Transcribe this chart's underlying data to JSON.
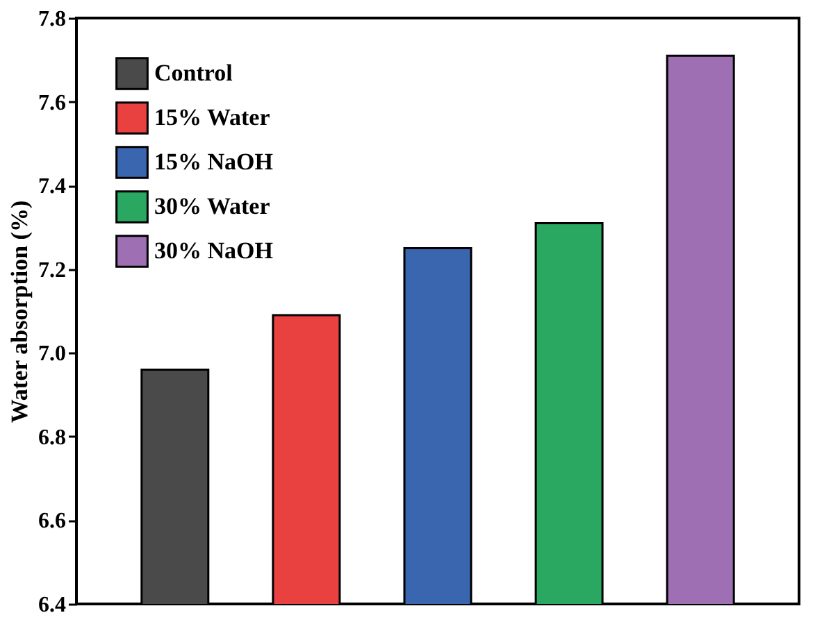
{
  "chart_data": {
    "type": "bar",
    "ylabel": "Water absorption (%)",
    "categories": [
      null,
      null,
      null,
      null,
      null
    ],
    "series": [
      {
        "name": "Control",
        "color": "#4a4a4a",
        "values": [
          6.96,
          null,
          null,
          null,
          null
        ]
      },
      {
        "name": "15% Water",
        "color": "#e8413f",
        "values": [
          null,
          7.09,
          null,
          null,
          null
        ]
      },
      {
        "name": "15% NaOH",
        "color": "#3a66b0",
        "values": [
          null,
          null,
          7.25,
          null,
          null
        ]
      },
      {
        "name": "30% Water",
        "color": "#2aa862",
        "values": [
          null,
          null,
          null,
          7.31,
          null
        ]
      },
      {
        "name": "30% NaOH",
        "color": "#9e6fb3",
        "values": [
          null,
          null,
          null,
          null,
          7.71
        ]
      }
    ],
    "ylim": [
      6.4,
      7.8
    ],
    "yticks": [
      6.4,
      6.6,
      6.8,
      {
        "value": 7,
        "label": "7.0"
      },
      7.2,
      7.4,
      7.6,
      7.8
    ],
    "stacked": true,
    "grid": false,
    "legend": "top left",
    "tick_labels": "y"
  }
}
